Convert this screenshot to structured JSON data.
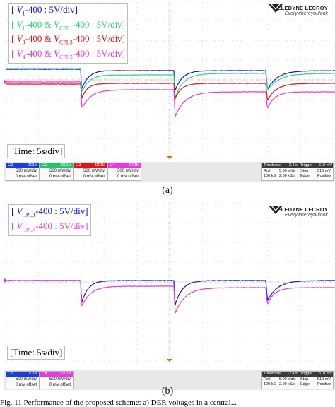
{
  "panels": [
    {
      "id": "a",
      "legend": [
        {
          "color": "#1414d2",
          "parts": [
            "[ ",
            "V",
            "1",
            "-400 : 5V/div]"
          ],
          "sub_only": false
        },
        {
          "color": "#2ed67a",
          "parts": [
            "[ ",
            "V",
            "1",
            "-400 & ",
            "V",
            "CPL1",
            "-400 : 5V/div]"
          ]
        },
        {
          "color": "#e0141a",
          "parts": [
            "[ ",
            "V",
            "3",
            "-400 & ",
            "V",
            "CPL3",
            "-400 : 5V/div]"
          ]
        },
        {
          "color": "#e43ae0",
          "parts": [
            "[ ",
            "V",
            "4",
            "-400 & ",
            "V",
            "CPL5",
            "-400 : 5V/div]"
          ]
        }
      ],
      "time_label": "[Time: 5s/div]",
      "channels": [
        {
          "name": "C1",
          "color": "#1a3fd6",
          "coupling": "DC1M",
          "scale": "500 mV/div",
          "offset": "0 mV offset"
        },
        {
          "name": "C2",
          "color": "#21c46c",
          "coupling": "DC1M",
          "scale": "500 mV/div",
          "offset": "0 mV offset"
        },
        {
          "name": "C3",
          "color": "#e0141a",
          "coupling": "DC1M",
          "scale": "500 mV/div",
          "offset": "0 mV offset"
        },
        {
          "name": "C4",
          "color": "#e43ae0",
          "coupling": "DC1M",
          "scale": "500 mV/div",
          "offset": "0 mV offset"
        }
      ],
      "caption": "(a)"
    },
    {
      "id": "b",
      "legend": [
        {
          "color": "#1414d2",
          "parts": [
            "[ ",
            "V",
            "CPL1",
            "-400 : 5V/div]"
          ]
        },
        {
          "color": "#e43ae0",
          "parts": [
            "[ ",
            "V",
            "CPL4",
            "-400 : 5V/div]"
          ]
        }
      ],
      "time_label": "[Time: 5s/div]",
      "channels": [
        {
          "name": "C1",
          "color": "#1a3fd6",
          "coupling": "DC1M",
          "scale": "500 mV/div",
          "offset": "0 mV offset"
        },
        {
          "name": "C4",
          "color": "#e43ae0",
          "coupling": "DC1M",
          "scale": "500 mV/div",
          "offset": "0 mV offset"
        }
      ],
      "caption": "(b)"
    }
  ],
  "brand": {
    "name": "TELEDYNE LECROY",
    "tagline": "Everywhereyoulook"
  },
  "timebase": {
    "title": "Timebase",
    "delay": "-2.4 s",
    "trigger": "Trigger",
    "trig_val": "510 mV",
    "roll": "Roll",
    "rate_div": "5.00 s/div",
    "stop": "Stop",
    "stop_val": "510 mV",
    "samples": "100 kS",
    "srate": "2.00 kS/s",
    "edge": "Edge",
    "positive": "Positive"
  },
  "figure_caption": "Fig. 11 Performance of the proposed scheme: a) DER voltages in a central..."
}
